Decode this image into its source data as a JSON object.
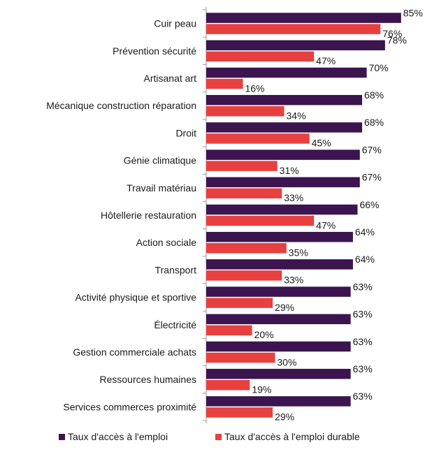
{
  "chart_data": {
    "type": "bar",
    "orientation": "horizontal",
    "categories": [
      "Cuir peau",
      "Prévention sécurité",
      "Artisanat art",
      "Mécanique construction réparation",
      "Droit",
      "Génie climatique",
      "Travail matériau",
      "Hôtellerie restauration",
      "Action sociale",
      "Transport",
      "Activité physique et sportive",
      "Électricité",
      "Gestion commerciale achats",
      "Ressources humaines",
      "Services commerces proximité"
    ],
    "series": [
      {
        "name": "Taux d'accès à l'emploi",
        "color": "#3b1450",
        "values": [
          85,
          78,
          70,
          68,
          68,
          67,
          67,
          66,
          64,
          64,
          63,
          63,
          63,
          63,
          63
        ],
        "labels": [
          "85%",
          "78%",
          "70%",
          "68%",
          "68%",
          "67%",
          "67%",
          "66%",
          "64%",
          "64%",
          "63%",
          "63%",
          "63%",
          "63%",
          "63%"
        ]
      },
      {
        "name": "Taux d'accès à l'emploi durable",
        "color": "#e8403f",
        "values": [
          76,
          47,
          16,
          34,
          45,
          31,
          33,
          47,
          35,
          33,
          29,
          20,
          30,
          19,
          29
        ],
        "labels": [
          "76%",
          "47%",
          "16%",
          "34%",
          "45%",
          "31%",
          "33%",
          "47%",
          "35%",
          "33%",
          "29%",
          "20%",
          "30%",
          "19%",
          "29%"
        ]
      }
    ],
    "xlim": [
      0,
      100
    ],
    "grid": false,
    "legend": "bottom"
  }
}
